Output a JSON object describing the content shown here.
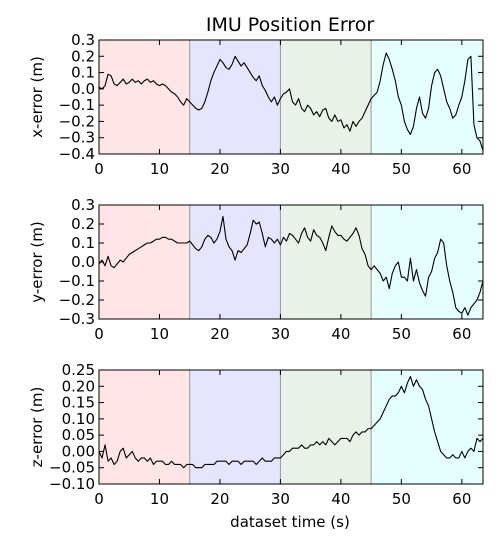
{
  "title": "IMU Position Error",
  "xlabel": "dataset time (s)",
  "chart_data": [
    {
      "type": "line",
      "ylabel": "x-error (m)",
      "xlim": [
        0,
        63.5
      ],
      "ylim": [
        -0.4,
        0.3
      ],
      "xticks": [
        0,
        10,
        20,
        30,
        40,
        50,
        60
      ],
      "yticks": [
        0.3,
        0.2,
        0.1,
        0.0,
        -0.1,
        -0.2,
        -0.3,
        -0.4
      ],
      "ytick_labels": [
        "0.3",
        "0.2",
        "0.1",
        "0.0",
        "−0.1",
        "−0.2",
        "−0.3",
        "−0.4"
      ],
      "bands": [
        {
          "from": 0,
          "to": 15,
          "color": "#ffcccc"
        },
        {
          "from": 15,
          "to": 30,
          "color": "#ccccff"
        },
        {
          "from": 30,
          "to": 45,
          "color": "#d4e6d4"
        },
        {
          "from": 45,
          "to": 63.5,
          "color": "#ccffff"
        }
      ],
      "series": [
        {
          "x": [
            0,
            0.5,
            1,
            1.5,
            2,
            2.5,
            3,
            3.5,
            4,
            4.5,
            5,
            5.5,
            6,
            6.5,
            7,
            7.5,
            8,
            8.5,
            9,
            9.5,
            10,
            10.5,
            11,
            11.5,
            12,
            12.5,
            13,
            13.5,
            14,
            14.5,
            15,
            15.5,
            16,
            16.5,
            17,
            17.5,
            18,
            18.5,
            19,
            19.5,
            20,
            20.5,
            21,
            21.5,
            22,
            22.5,
            23,
            23.5,
            24,
            24.5,
            25,
            25.5,
            26,
            26.5,
            27,
            27.5,
            28,
            28.5,
            29,
            29.5,
            30,
            30.5,
            31,
            31.5,
            32,
            32.5,
            33,
            33.5,
            34,
            34.5,
            35,
            35.5,
            36,
            36.5,
            37,
            37.5,
            38,
            38.5,
            39,
            39.5,
            40,
            40.5,
            41,
            41.5,
            42,
            42.5,
            43,
            43.5,
            44,
            44.5,
            45,
            45.5,
            46,
            46.5,
            47,
            47.5,
            48,
            48.5,
            49,
            49.5,
            50,
            50.5,
            51,
            51.5,
            52,
            52.5,
            53,
            53.5,
            54,
            54.5,
            55,
            55.5,
            56,
            56.5,
            57,
            57.5,
            58,
            58.5,
            59,
            59.5,
            60,
            60.5,
            61,
            61.5,
            62,
            62.5,
            63,
            63.5
          ],
          "y": [
            0.01,
            0.0,
            0.02,
            0.09,
            0.08,
            0.03,
            0.02,
            0.04,
            0.06,
            0.03,
            0.04,
            0.06,
            0.04,
            0.05,
            0.03,
            0.05,
            0.06,
            0.04,
            0.05,
            0.03,
            0.02,
            0.03,
            0.02,
            0.0,
            -0.02,
            -0.03,
            -0.05,
            -0.08,
            -0.1,
            -0.06,
            -0.08,
            -0.1,
            -0.12,
            -0.13,
            -0.12,
            -0.08,
            -0.02,
            0.05,
            0.1,
            0.14,
            0.18,
            0.16,
            0.13,
            0.12,
            0.15,
            0.2,
            0.17,
            0.14,
            0.16,
            0.13,
            0.1,
            0.07,
            0.05,
            0.08,
            0.02,
            -0.01,
            -0.05,
            -0.08,
            -0.05,
            -0.1,
            -0.06,
            -0.03,
            -0.02,
            0.0,
            -0.08,
            -0.1,
            -0.06,
            -0.12,
            -0.14,
            -0.1,
            -0.12,
            -0.16,
            -0.14,
            -0.17,
            -0.13,
            -0.12,
            -0.18,
            -0.2,
            -0.16,
            -0.2,
            -0.19,
            -0.24,
            -0.22,
            -0.26,
            -0.2,
            -0.23,
            -0.2,
            -0.18,
            -0.14,
            -0.1,
            -0.06,
            -0.04,
            -0.02,
            0.05,
            0.15,
            0.22,
            0.18,
            0.12,
            0.05,
            -0.05,
            -0.1,
            -0.2,
            -0.25,
            -0.28,
            -0.23,
            -0.12,
            -0.05,
            -0.15,
            -0.18,
            -0.12,
            0.02,
            0.1,
            0.12,
            0.08,
            0.0,
            -0.08,
            -0.12,
            -0.18,
            -0.16,
            -0.1,
            -0.05,
            0.05,
            0.18,
            0.2,
            -0.22,
            -0.3,
            -0.32,
            -0.38
          ]
        }
      ]
    },
    {
      "type": "line",
      "ylabel": "y-error (m)",
      "xlim": [
        0,
        63.5
      ],
      "ylim": [
        -0.3,
        0.3
      ],
      "xticks": [
        0,
        10,
        20,
        30,
        40,
        50,
        60
      ],
      "yticks": [
        0.3,
        0.2,
        0.1,
        0.0,
        -0.1,
        -0.2,
        -0.3
      ],
      "ytick_labels": [
        "0.3",
        "0.2",
        "0.1",
        "0.0",
        "−0.1",
        "−0.2",
        "−0.3"
      ],
      "bands": [
        {
          "from": 0,
          "to": 15,
          "color": "#ffcccc"
        },
        {
          "from": 15,
          "to": 30,
          "color": "#ccccff"
        },
        {
          "from": 30,
          "to": 45,
          "color": "#d4e6d4"
        },
        {
          "from": 45,
          "to": 63.5,
          "color": "#ccffff"
        }
      ],
      "series": [
        {
          "x": [
            0,
            0.5,
            1,
            1.5,
            2,
            2.5,
            3,
            3.5,
            4,
            4.5,
            5,
            5.5,
            6,
            6.5,
            7,
            7.5,
            8,
            8.5,
            9,
            9.5,
            10,
            10.5,
            11,
            11.5,
            12,
            12.5,
            13,
            13.5,
            14,
            14.5,
            15,
            15.5,
            16,
            16.5,
            17,
            17.5,
            18,
            18.5,
            19,
            19.5,
            20,
            20.5,
            21,
            21.5,
            22,
            22.5,
            23,
            23.5,
            24,
            24.5,
            25,
            25.5,
            26,
            26.5,
            27,
            27.5,
            28,
            28.5,
            29,
            29.5,
            30,
            30.5,
            31,
            31.5,
            32,
            32.5,
            33,
            33.5,
            34,
            34.5,
            35,
            35.5,
            36,
            36.5,
            37,
            37.5,
            38,
            38.5,
            39,
            39.5,
            40,
            40.5,
            41,
            41.5,
            42,
            42.5,
            43,
            43.5,
            44,
            44.5,
            45,
            45.5,
            46,
            46.5,
            47,
            47.5,
            48,
            48.5,
            49,
            49.5,
            50,
            50.5,
            51,
            51.5,
            52,
            52.5,
            53,
            53.5,
            54,
            54.5,
            55,
            55.5,
            56,
            56.5,
            57,
            57.5,
            58,
            58.5,
            59,
            59.5,
            60,
            60.5,
            61,
            61.5,
            62,
            62.5,
            63,
            63.5
          ],
          "y": [
            -0.01,
            0.01,
            -0.02,
            0.03,
            -0.02,
            -0.03,
            -0.01,
            0.01,
            0.0,
            0.02,
            0.04,
            0.05,
            0.06,
            0.07,
            0.08,
            0.09,
            0.1,
            0.1,
            0.11,
            0.12,
            0.12,
            0.13,
            0.13,
            0.12,
            0.12,
            0.11,
            0.1,
            0.1,
            0.1,
            0.1,
            0.11,
            0.09,
            0.07,
            0.06,
            0.08,
            0.12,
            0.14,
            0.13,
            0.1,
            0.12,
            0.16,
            0.24,
            0.12,
            0.08,
            0.06,
            0.01,
            0.06,
            0.05,
            0.07,
            0.09,
            0.15,
            0.22,
            0.2,
            0.21,
            0.15,
            0.08,
            0.13,
            0.12,
            0.1,
            0.12,
            0.09,
            0.13,
            0.11,
            0.15,
            0.14,
            0.12,
            0.1,
            0.15,
            0.18,
            0.13,
            0.11,
            0.17,
            0.14,
            0.13,
            0.1,
            0.06,
            0.13,
            0.19,
            0.16,
            0.14,
            0.14,
            0.12,
            0.11,
            0.13,
            0.15,
            0.18,
            0.14,
            0.07,
            0.04,
            -0.02,
            -0.04,
            -0.02,
            -0.04,
            -0.06,
            -0.1,
            -0.08,
            -0.14,
            -0.06,
            -0.02,
            0.0,
            -0.08,
            -0.08,
            -0.1,
            0.02,
            -0.1,
            -0.04,
            -0.11,
            -0.15,
            -0.18,
            -0.08,
            -0.05,
            0.02,
            0.05,
            0.12,
            0.1,
            -0.02,
            -0.1,
            -0.16,
            -0.24,
            -0.26,
            -0.27,
            -0.24,
            -0.28,
            -0.24,
            -0.22,
            -0.2,
            -0.16,
            -0.1
          ]
        }
      ]
    },
    {
      "type": "line",
      "ylabel": "z-error (m)",
      "xlim": [
        0,
        63.5
      ],
      "ylim": [
        -0.1,
        0.25
      ],
      "xticks": [
        0,
        10,
        20,
        30,
        40,
        50,
        60
      ],
      "yticks": [
        0.25,
        0.2,
        0.15,
        0.1,
        0.05,
        0.0,
        -0.05,
        -0.1
      ],
      "ytick_labels": [
        "0.25",
        "0.20",
        "0.15",
        "0.10",
        "0.05",
        "0.00",
        "−0.05",
        "−0.10"
      ],
      "bands": [
        {
          "from": 0,
          "to": 15,
          "color": "#ffcccc"
        },
        {
          "from": 15,
          "to": 30,
          "color": "#ccccff"
        },
        {
          "from": 30,
          "to": 45,
          "color": "#d4e6d4"
        },
        {
          "from": 45,
          "to": 63.5,
          "color": "#ccffff"
        }
      ],
      "series": [
        {
          "x": [
            0,
            0.5,
            1,
            1.5,
            2,
            2.5,
            3,
            3.5,
            4,
            4.5,
            5,
            5.5,
            6,
            6.5,
            7,
            7.5,
            8,
            8.5,
            9,
            9.5,
            10,
            10.5,
            11,
            11.5,
            12,
            12.5,
            13,
            13.5,
            14,
            14.5,
            15,
            15.5,
            16,
            16.5,
            17,
            17.5,
            18,
            18.5,
            19,
            19.5,
            20,
            20.5,
            21,
            21.5,
            22,
            22.5,
            23,
            23.5,
            24,
            24.5,
            25,
            25.5,
            26,
            26.5,
            27,
            27.5,
            28,
            28.5,
            29,
            29.5,
            30,
            30.5,
            31,
            31.5,
            32,
            32.5,
            33,
            33.5,
            34,
            34.5,
            35,
            35.5,
            36,
            36.5,
            37,
            37.5,
            38,
            38.5,
            39,
            39.5,
            40,
            40.5,
            41,
            41.5,
            42,
            42.5,
            43,
            43.5,
            44,
            44.5,
            45,
            45.5,
            46,
            46.5,
            47,
            47.5,
            48,
            48.5,
            49,
            49.5,
            50,
            50.5,
            51,
            51.5,
            52,
            52.5,
            53,
            53.5,
            54,
            54.5,
            55,
            55.5,
            56,
            56.5,
            57,
            57.5,
            58,
            58.5,
            59,
            59.5,
            60,
            60.5,
            61,
            61.5,
            62,
            62.5,
            63,
            63.5
          ],
          "y": [
            0.0,
            -0.02,
            0.02,
            -0.03,
            -0.02,
            -0.04,
            -0.03,
            0.0,
            0.01,
            -0.02,
            -0.01,
            0.0,
            -0.02,
            -0.03,
            -0.02,
            -0.02,
            -0.03,
            -0.02,
            -0.04,
            -0.03,
            -0.03,
            -0.03,
            -0.04,
            -0.04,
            -0.03,
            -0.04,
            -0.04,
            -0.04,
            -0.05,
            -0.04,
            -0.04,
            -0.04,
            -0.05,
            -0.05,
            -0.05,
            -0.04,
            -0.04,
            -0.04,
            -0.04,
            -0.03,
            -0.03,
            -0.03,
            -0.03,
            -0.04,
            -0.03,
            -0.03,
            -0.03,
            -0.04,
            -0.03,
            -0.03,
            -0.03,
            -0.03,
            -0.04,
            -0.03,
            -0.02,
            -0.03,
            -0.03,
            -0.03,
            -0.02,
            -0.02,
            -0.02,
            -0.01,
            0.0,
            0.0,
            0.01,
            0.01,
            0.01,
            0.02,
            0.01,
            0.01,
            0.02,
            0.02,
            0.03,
            0.02,
            0.03,
            0.02,
            0.04,
            0.03,
            0.02,
            0.03,
            0.04,
            0.04,
            0.04,
            0.03,
            0.05,
            0.06,
            0.05,
            0.06,
            0.06,
            0.07,
            0.07,
            0.08,
            0.09,
            0.1,
            0.12,
            0.14,
            0.16,
            0.17,
            0.17,
            0.18,
            0.2,
            0.18,
            0.21,
            0.23,
            0.2,
            0.22,
            0.2,
            0.19,
            0.16,
            0.14,
            0.1,
            0.06,
            0.03,
            0.0,
            -0.01,
            -0.02,
            -0.02,
            -0.01,
            -0.02,
            -0.02,
            0.0,
            -0.02,
            0.0,
            0.01,
            0.0,
            0.04,
            0.03,
            0.04
          ]
        }
      ]
    }
  ]
}
